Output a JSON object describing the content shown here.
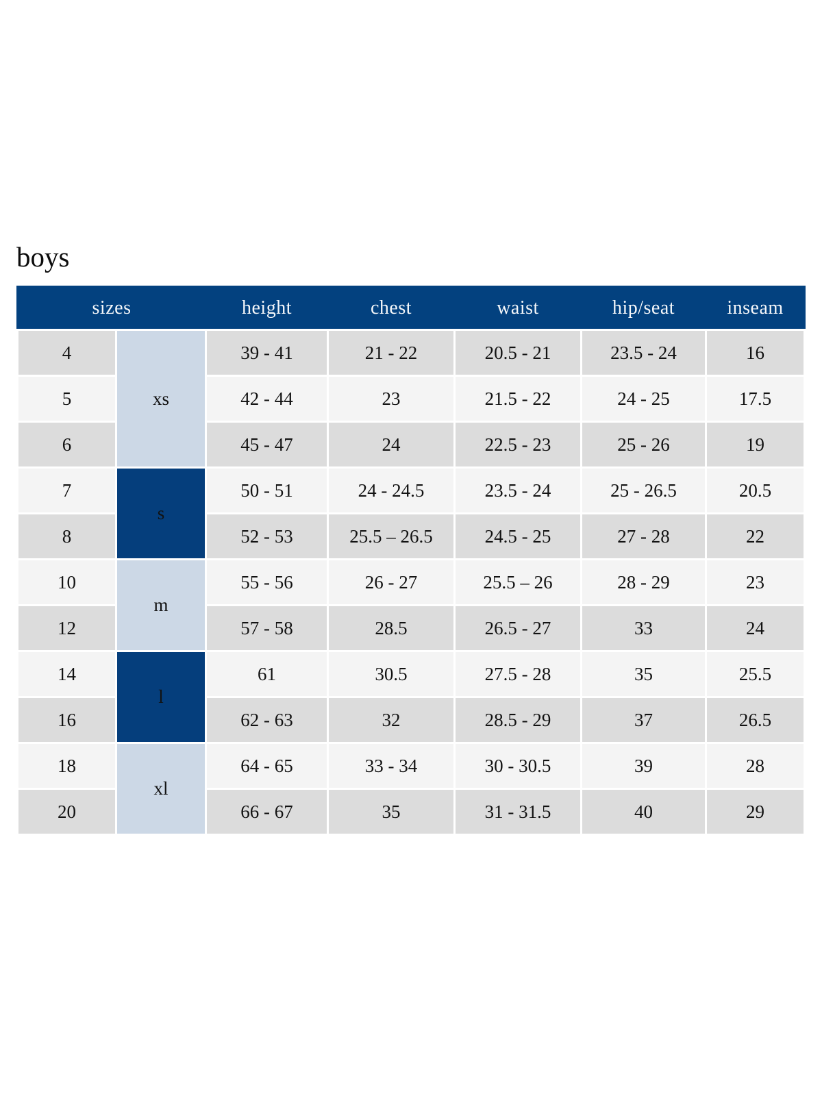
{
  "page": {
    "title": "boys"
  },
  "colors": {
    "header_bg": "#03417f",
    "header_text": "#f5f7fa",
    "group_light_bg": "#ccd8e6",
    "group_dark_bg": "#053e7c",
    "row_gray_bg": "#dcdcdc",
    "row_light_bg": "#f4f4f4",
    "cell_text": "#121212"
  },
  "table": {
    "column_headers": [
      "sizes",
      "height",
      "chest",
      "waist",
      "hip/seat",
      "inseam"
    ],
    "size_groups": [
      {
        "label": "xs",
        "row_span": 3,
        "variant": "light"
      },
      {
        "label": "s",
        "row_span": 2,
        "variant": "dark"
      },
      {
        "label": "m",
        "row_span": 2,
        "variant": "light"
      },
      {
        "label": "l",
        "row_span": 2,
        "variant": "dark"
      },
      {
        "label": "xl",
        "row_span": 2,
        "variant": "light"
      }
    ],
    "rows": [
      {
        "size": "4",
        "height": "39 - 41",
        "chest": "21 - 22",
        "waist": "20.5 - 21",
        "hip_seat": "23.5 - 24",
        "inseam": "16"
      },
      {
        "size": "5",
        "height": "42 - 44",
        "chest": "23",
        "waist": "21.5 - 22",
        "hip_seat": "24 - 25",
        "inseam": "17.5"
      },
      {
        "size": "6",
        "height": "45 - 47",
        "chest": "24",
        "waist": "22.5 - 23",
        "hip_seat": "25 - 26",
        "inseam": "19"
      },
      {
        "size": "7",
        "height": "50 - 51",
        "chest": "24 - 24.5",
        "waist": "23.5 - 24",
        "hip_seat": "25 - 26.5",
        "inseam": "20.5"
      },
      {
        "size": "8",
        "height": "52 - 53",
        "chest": "25.5 – 26.5",
        "waist": "24.5 - 25",
        "hip_seat": "27 - 28",
        "inseam": "22"
      },
      {
        "size": "10",
        "height": "55 - 56",
        "chest": "26 - 27",
        "waist": "25.5 – 26",
        "hip_seat": "28 - 29",
        "inseam": "23"
      },
      {
        "size": "12",
        "height": "57 - 58",
        "chest": "28.5",
        "waist": "26.5 - 27",
        "hip_seat": "33",
        "inseam": "24"
      },
      {
        "size": "14",
        "height": "61",
        "chest": "30.5",
        "waist": "27.5 - 28",
        "hip_seat": "35",
        "inseam": "25.5"
      },
      {
        "size": "16",
        "height": "62 - 63",
        "chest": "32",
        "waist": "28.5 - 29",
        "hip_seat": "37",
        "inseam": "26.5"
      },
      {
        "size": "18",
        "height": "64 - 65",
        "chest": "33 - 34",
        "waist": "30 - 30.5",
        "hip_seat": "39",
        "inseam": "28"
      },
      {
        "size": "20",
        "height": "66 - 67",
        "chest": "35",
        "waist": "31 - 31.5",
        "hip_seat": "40",
        "inseam": "29"
      }
    ],
    "row_shading": [
      "gray",
      "light",
      "gray",
      "light",
      "gray",
      "light",
      "gray",
      "light",
      "gray",
      "light",
      "gray"
    ]
  }
}
